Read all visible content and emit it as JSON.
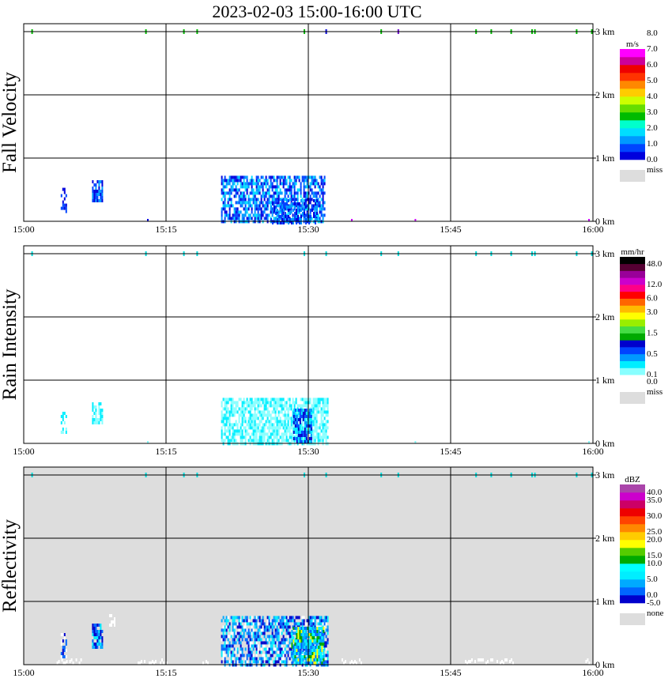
{
  "title": "2023-02-03   15:00-16:00 UTC",
  "x_ticks": [
    "15:00",
    "15:15",
    "15:30",
    "15:45",
    "16:00"
  ],
  "y_ticks": [
    "0 km",
    "1 km",
    "2 km",
    "3 km"
  ],
  "chart_data": [
    {
      "type": "heatmap",
      "ylabel": "Fall Velocity",
      "xlim": [
        "15:00",
        "16:00"
      ],
      "ylim_km": [
        0,
        3
      ],
      "background": "#ffffff",
      "legend": {
        "unit": "m/s",
        "miss_label": "miss",
        "miss_color": "#dddddd",
        "colors": [
          "#0000dd",
          "#0044ff",
          "#0099ff",
          "#00ddff",
          "#00ffcc",
          "#00bb00",
          "#66dd00",
          "#ccff00",
          "#ffcc00",
          "#ff8800",
          "#ff3300",
          "#ee0000",
          "#cc0099",
          "#ff00ff"
        ],
        "labels": [
          "0.0",
          "1.0",
          "2.0",
          "3.0",
          "4.0",
          "5.0",
          "6.0",
          "7.0",
          "8.0"
        ],
        "label_rows": [
          0,
          2,
          4,
          6,
          8,
          10,
          12,
          14,
          16
        ]
      },
      "blobs": [
        {
          "t0": 3.9,
          "t1": 4.4,
          "h0": 0.18,
          "h1": 0.55,
          "palette": [
            0,
            1
          ],
          "density": 0.6
        },
        {
          "t0": 7.2,
          "t1": 8.3,
          "h0": 0.35,
          "h1": 0.7,
          "palette": [
            0,
            1,
            2
          ],
          "density": 0.75
        },
        {
          "t0": 20.8,
          "t1": 31.8,
          "h0": 0.02,
          "h1": 0.75,
          "palette": [
            0,
            1,
            2,
            3
          ],
          "density": 0.7
        },
        {
          "t0": 26.0,
          "t1": 31.0,
          "h0": 0.0,
          "h1": 0.35,
          "palette": [
            0,
            1,
            2
          ],
          "density": 0.5
        }
      ],
      "top_marks": [
        0.8,
        12.8,
        16.8,
        18.2,
        29.5,
        31.8,
        37.6,
        39.4,
        47.6,
        49.2,
        51.3,
        53.5,
        53.8,
        58.2,
        59.8
      ],
      "top_mark_colors": [
        "#00bb00",
        "#00bb00",
        "#00bb00",
        "#00bb00",
        "#00bb00",
        "#0000dd",
        "#00bb00",
        "#6600cc",
        "#00bb00",
        "#00bb00",
        "#00bb00",
        "#00bb00",
        "#00bb00",
        "#00bb00",
        "#00bb00"
      ],
      "bottom_marks": [
        13.0,
        34.5,
        41.2,
        59.5
      ],
      "bottom_mark_colors": [
        "#0000dd",
        "#cc00ff",
        "#cc00ff",
        "#cc00ff"
      ]
    },
    {
      "type": "heatmap",
      "ylabel": "Rain Intensity",
      "xlim": [
        "15:00",
        "16:00"
      ],
      "ylim_km": [
        0,
        3
      ],
      "background": "#ffffff",
      "legend": {
        "unit": "mm/hr",
        "miss_label": "miss",
        "miss_color": "#dddddd",
        "colors": [
          "#ffffff",
          "#88ffff",
          "#00eeff",
          "#0099ff",
          "#0044ff",
          "#0000cc",
          "#00aa00",
          "#44dd44",
          "#99ee00",
          "#ffff00",
          "#ffbb00",
          "#ff6600",
          "#ff0000",
          "#ff0088",
          "#cc00cc",
          "#990099",
          "#550033",
          "#000000"
        ],
        "labels": [
          "0.0",
          "0.1",
          "0.5",
          "1.5",
          "3.0",
          "6.0",
          "12.0",
          "48.0"
        ],
        "label_rows": [
          0,
          1,
          4,
          7,
          10,
          12,
          14,
          17
        ]
      },
      "blobs": [
        {
          "t0": 3.9,
          "t1": 4.4,
          "h0": 0.2,
          "h1": 0.5,
          "palette": [
            1,
            2
          ],
          "density": 0.5
        },
        {
          "t0": 7.2,
          "t1": 8.3,
          "h0": 0.35,
          "h1": 0.7,
          "palette": [
            1,
            2
          ],
          "density": 0.75
        },
        {
          "t0": 20.8,
          "t1": 32.0,
          "h0": 0.02,
          "h1": 0.75,
          "palette": [
            1,
            1,
            2
          ],
          "density": 0.75
        },
        {
          "t0": 28.4,
          "t1": 30.4,
          "h0": 0.05,
          "h1": 0.55,
          "palette": [
            2,
            3,
            4,
            5
          ],
          "density": 0.8
        }
      ],
      "top_marks": [
        0.8,
        12.8,
        16.8,
        18.2,
        29.5,
        31.8,
        37.6,
        39.4,
        47.6,
        49.2,
        51.3,
        53.5,
        53.8,
        58.2,
        59.8
      ],
      "top_mark_colors": [
        "#00dddd",
        "#00dddd",
        "#00dddd",
        "#00dddd",
        "#00dddd",
        "#00dddd",
        "#00dddd",
        "#00dddd",
        "#00dddd",
        "#00dddd",
        "#00dddd",
        "#00dddd",
        "#00dddd",
        "#00dddd",
        "#00dddd"
      ],
      "bottom_marks": [
        13.0,
        41.2,
        59.5
      ],
      "bottom_mark_colors": [
        "#88ffff",
        "#88ffff",
        "#88ffff"
      ]
    },
    {
      "type": "heatmap",
      "ylabel": "Reflectivity",
      "xlim": [
        "15:00",
        "16:00"
      ],
      "ylim_km": [
        0,
        3
      ],
      "background": "#dddddd",
      "legend": {
        "unit": "dBZ",
        "miss_label": "none",
        "miss_color": "#dddddd",
        "colors": [
          "#0000cc",
          "#0066ff",
          "#00aaff",
          "#00eeff",
          "#00ffff",
          "#00aa00",
          "#55cc00",
          "#ffff00",
          "#ffcc00",
          "#ff8800",
          "#ff4400",
          "#ee0000",
          "#cc0066",
          "#cc00cc",
          "#aa44aa"
        ],
        "labels": [
          "-5.0",
          "0.0",
          "5.0",
          "10.0",
          "15.0",
          "20.0",
          "25.0",
          "30.0",
          "35.0",
          "40.0"
        ],
        "label_rows": [
          0,
          1,
          3,
          5,
          6,
          8,
          9,
          11,
          13,
          14
        ]
      },
      "blobs": [
        {
          "t0": 3.9,
          "t1": 4.4,
          "h0": 0.15,
          "h1": 0.5,
          "palette": [
            -1,
            0,
            1
          ],
          "density": 0.6
        },
        {
          "t0": 7.2,
          "t1": 8.3,
          "h0": 0.3,
          "h1": 0.7,
          "palette": [
            0,
            1,
            2,
            3
          ],
          "density": 0.8
        },
        {
          "t0": 9.0,
          "t1": 9.5,
          "h0": 0.6,
          "h1": 0.85,
          "palette": [
            -1
          ],
          "density": 0.5
        },
        {
          "t0": 20.8,
          "t1": 32.0,
          "h0": 0.02,
          "h1": 0.8,
          "palette": [
            -1,
            0,
            1,
            2,
            3
          ],
          "density": 0.7
        },
        {
          "t0": 28.2,
          "t1": 31.6,
          "h0": 0.05,
          "h1": 0.6,
          "palette": [
            1,
            2,
            3,
            4,
            5,
            7
          ],
          "density": 0.85
        }
      ],
      "ground_clutter": [
        {
          "t0": 3.3,
          "t1": 6.0
        },
        {
          "t0": 12.0,
          "t1": 15.0
        },
        {
          "t0": 18.5,
          "t1": 19.5
        },
        {
          "t0": 33.5,
          "t1": 35.5
        },
        {
          "t0": 46.5,
          "t1": 51.5
        },
        {
          "t0": 59.2,
          "t1": 60.0
        }
      ],
      "top_marks": [
        0.8,
        12.8,
        16.8,
        18.2,
        29.5,
        31.8,
        37.6,
        39.4,
        47.6,
        49.2,
        51.3,
        53.5,
        53.8,
        58.2,
        59.8
      ],
      "top_mark_colors": [
        "#00dddd",
        "#00dddd",
        "#00dddd",
        "#00dddd",
        "#00dddd",
        "#00dddd",
        "#00dddd",
        "#00dddd",
        "#00dddd",
        "#00dddd",
        "#00dddd",
        "#00dddd",
        "#00dddd",
        "#00dddd",
        "#00dddd"
      ],
      "bottom_marks": [],
      "bottom_mark_colors": []
    }
  ]
}
